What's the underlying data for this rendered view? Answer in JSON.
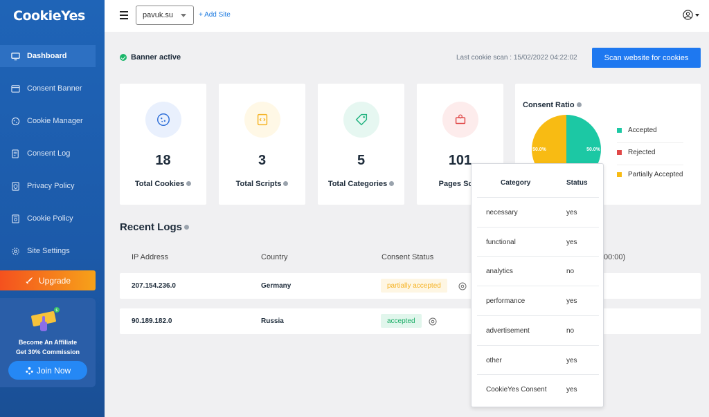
{
  "app": {
    "logo": "CookieYes"
  },
  "sidebar": {
    "items": [
      {
        "label": "Dashboard",
        "icon": "monitor-icon"
      },
      {
        "label": "Consent Banner",
        "icon": "banner-icon"
      },
      {
        "label": "Cookie Manager",
        "icon": "cookie-icon"
      },
      {
        "label": "Consent Log",
        "icon": "log-icon"
      },
      {
        "label": "Privacy Policy",
        "icon": "shield-doc-icon"
      },
      {
        "label": "Cookie Policy",
        "icon": "policy-doc-icon"
      },
      {
        "label": "Site Settings",
        "icon": "gear-icon"
      }
    ],
    "upgrade_label": "Upgrade",
    "affiliate": {
      "line1": "Become An Affiliate",
      "line2": "Get 30% Commission",
      "join_label": "Join Now",
      "badge": "$"
    }
  },
  "topbar": {
    "site": "pavuk.su",
    "add_site": "+ Add Site"
  },
  "status": {
    "banner": "Banner active",
    "last_scan": "Last cookie scan : 15/02/2022 04:22:02",
    "scan_button": "Scan website for cookies"
  },
  "stats": [
    {
      "value": "18",
      "label": "Total Cookies",
      "color": "#e9f0fd",
      "icon_color": "#2f6fd8"
    },
    {
      "value": "3",
      "label": "Total Scripts",
      "color": "#fff8e6",
      "icon_color": "#f5b223"
    },
    {
      "value": "5",
      "label": "Total Categories",
      "color": "#e6f7f1",
      "icon_color": "#20b27e"
    },
    {
      "value": "101",
      "label": "Pages Scan",
      "color": "#fdecec",
      "icon_color": "#e04848"
    }
  ],
  "consent_ratio": {
    "title": "Consent Ratio",
    "legend": [
      {
        "label": "Accepted",
        "color": "#1cc8a4"
      },
      {
        "label": "Rejected",
        "color": "#e04848"
      },
      {
        "label": "Partially Accepted",
        "color": "#f8bb13"
      }
    ]
  },
  "chart_data": {
    "type": "pie",
    "title": "Consent Ratio",
    "labels": [
      "Accepted",
      "Rejected",
      "Partially Accepted"
    ],
    "values": [
      50.0,
      0.0,
      50.0
    ],
    "data_labels": [
      "50.0%",
      "",
      "50.0%"
    ],
    "colors": [
      "#1cc8a4",
      "#e04848",
      "#f8bb13"
    ],
    "legend": "right"
  },
  "logs": {
    "title": "Recent Logs",
    "columns": [
      "IP Address",
      "Country",
      "Consent Status",
      "00:00)"
    ],
    "rows": [
      {
        "ip": "207.154.236.0",
        "country": "Germany",
        "status": "partially accepted",
        "status_type": "partial"
      },
      {
        "ip": "90.189.182.0",
        "country": "Russia",
        "status": "accepted",
        "status_type": "accepted"
      }
    ]
  },
  "popover": {
    "headers": {
      "category": "Category",
      "status": "Status"
    },
    "rows": [
      {
        "category": "necessary",
        "status": "yes"
      },
      {
        "category": "functional",
        "status": "yes"
      },
      {
        "category": "analytics",
        "status": "no"
      },
      {
        "category": "performance",
        "status": "yes"
      },
      {
        "category": "advertisement",
        "status": "no"
      },
      {
        "category": "other",
        "status": "yes"
      },
      {
        "category": "CookieYes Consent",
        "status": "yes"
      }
    ]
  }
}
